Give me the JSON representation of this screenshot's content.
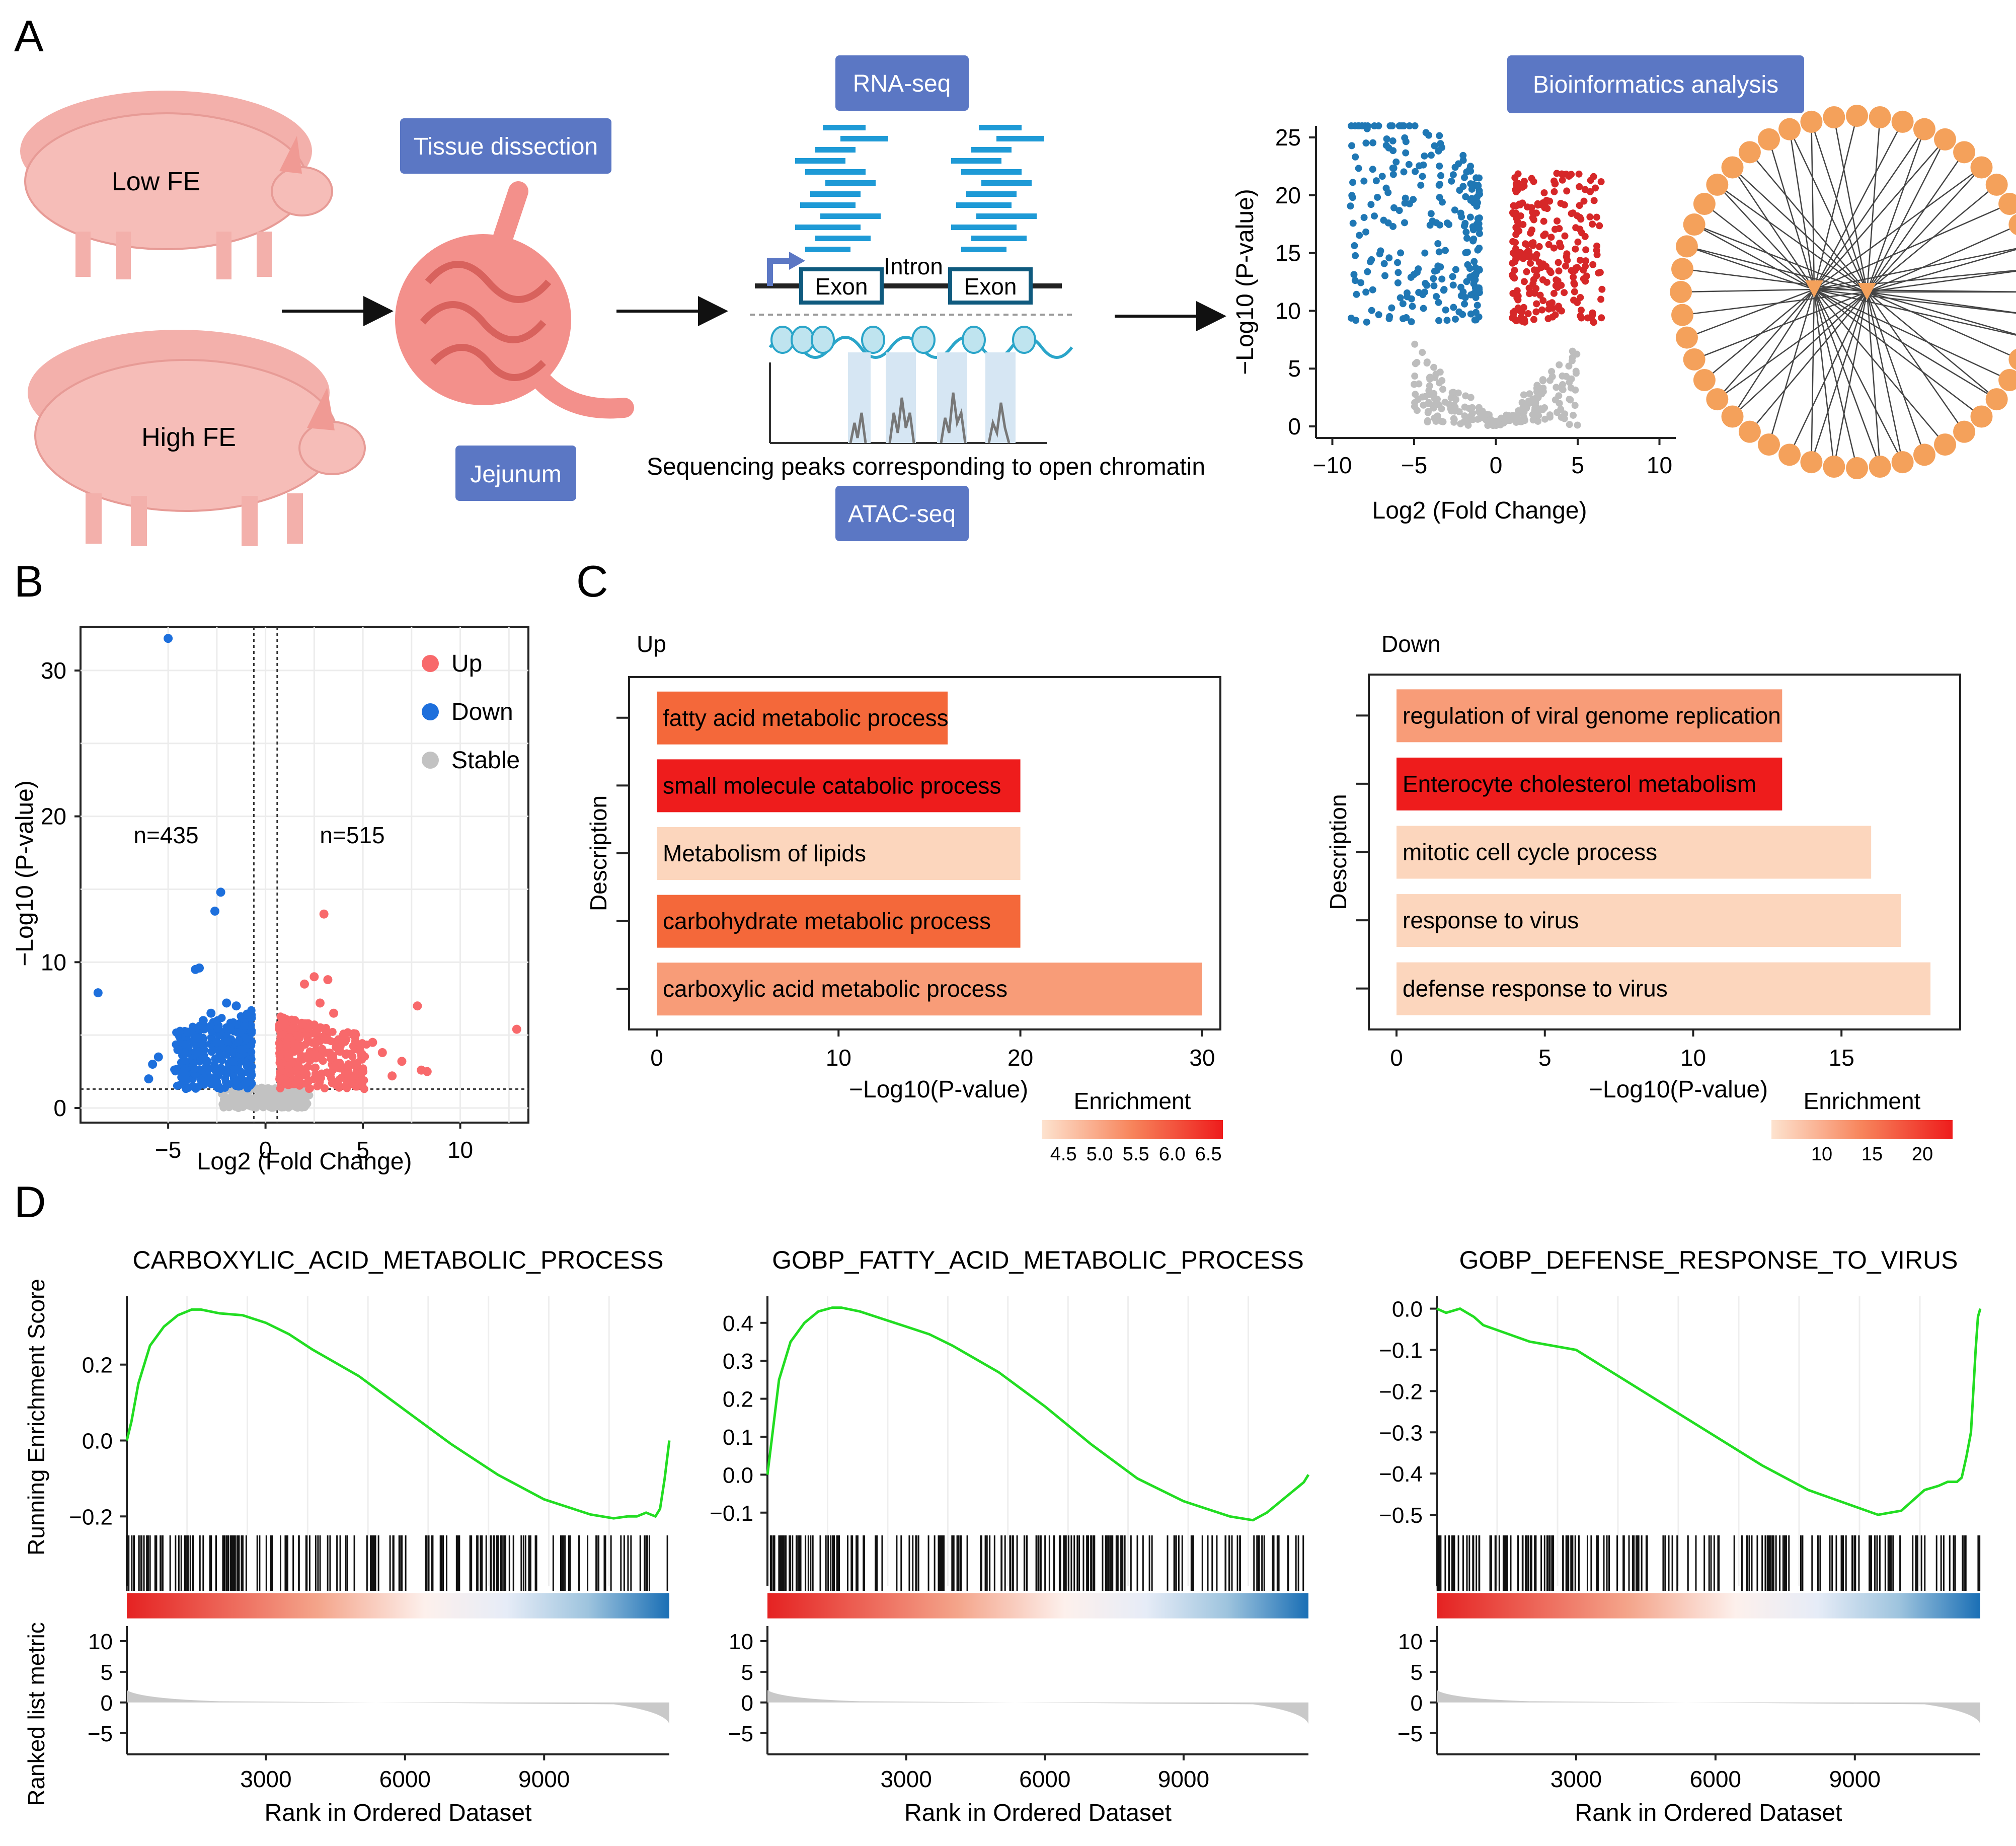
{
  "panel_labels": {
    "a": "A",
    "b": "B",
    "c": "C",
    "d": "D"
  },
  "panel_a": {
    "pig_low_label": "Low FE",
    "pig_high_label": "High FE",
    "tissue_dissection": "Tissue dissection",
    "jejunum": "Jejunum",
    "rna_seq": "RNA-seq",
    "atac_seq": "ATAC-seq",
    "intron": "Intron",
    "exon1": "Exon",
    "exon2": "Exon",
    "peaks_caption": "Sequencing peaks corresponding to open chromatin",
    "bioinformatics": "Bioinformatics analysis",
    "volcano_ylabel": "−Log10 (P-value)",
    "volcano_xlabel": "Log2 (Fold Change)",
    "volcano_xticks": [
      "−10",
      "−5",
      "0",
      "5",
      "10"
    ],
    "volcano_yticks": [
      "0",
      "5",
      "10",
      "15",
      "20",
      "25"
    ],
    "colors": {
      "box": "#5b77c4",
      "pig": "#f6b6b1",
      "gut": "#f08a86",
      "up": "#d62728",
      "down": "#1f77b4",
      "stable": "#bdbdbd",
      "node": "#f4a15b"
    }
  },
  "chart_data": [
    {
      "id": "B",
      "type": "scatter",
      "title": "",
      "xlabel": "Log2 (Fold Change)",
      "ylabel": "−Log10 (P-value)",
      "xlim": [
        -9.5,
        13.5
      ],
      "ylim": [
        -1,
        33
      ],
      "xticks": [
        "−5",
        "0",
        "5",
        "10"
      ],
      "yticks": [
        "0",
        "10",
        "20",
        "30"
      ],
      "legend": [
        "Up",
        "Down",
        "Stable"
      ],
      "legend_position": "top-right",
      "annotations": [
        "n=435",
        "n=515"
      ],
      "series": [
        {
          "name": "Up",
          "color": "#f8696b",
          "points": [
            [
              2.0,
              8.5
            ],
            [
              2.5,
              9.0
            ],
            [
              3.2,
              8.8
            ],
            [
              2.8,
              7.2
            ],
            [
              3.5,
              6.5
            ],
            [
              4.0,
              5.0
            ],
            [
              5.5,
              4.5
            ],
            [
              6.0,
              3.8
            ],
            [
              7.0,
              3.2
            ],
            [
              8.0,
              2.6
            ],
            [
              8.3,
              2.5
            ],
            [
              12.9,
              5.4
            ],
            [
              7.8,
              7.0
            ],
            [
              3.0,
              13.3
            ],
            [
              1.5,
              6.0
            ],
            [
              2.2,
              5.5
            ],
            [
              4.5,
              3.0
            ],
            [
              5.0,
              2.5
            ],
            [
              6.5,
              2.2
            ],
            [
              1.2,
              3.5
            ],
            [
              1.8,
              4.2
            ],
            [
              3.8,
              3.9
            ],
            [
              2.6,
              4.6
            ]
          ]
        },
        {
          "name": "Down",
          "color": "#1d6fdc",
          "points": [
            [
              -5.0,
              32.2
            ],
            [
              -2.3,
              14.8
            ],
            [
              -2.6,
              13.5
            ],
            [
              -3.6,
              9.5
            ],
            [
              -3.4,
              9.6
            ],
            [
              -8.6,
              7.9
            ],
            [
              -2.8,
              6.5
            ],
            [
              -3.2,
              6.0
            ],
            [
              -2.0,
              7.2
            ],
            [
              -1.5,
              7.0
            ],
            [
              -4.0,
              5.2
            ],
            [
              -4.5,
              4.0
            ],
            [
              -5.5,
              3.5
            ],
            [
              -6.0,
              2.0
            ],
            [
              -5.8,
              3.0
            ],
            [
              -3.5,
              4.8
            ],
            [
              -1.8,
              5.5
            ],
            [
              -2.5,
              4.5
            ],
            [
              -1.2,
              4.0
            ],
            [
              -3.0,
              3.2
            ],
            [
              -4.2,
              2.5
            ]
          ]
        }
      ]
    },
    {
      "id": "C-Up",
      "type": "bar",
      "title": "Up",
      "xlabel": "−Log10(P-value)",
      "ylabel": "Description",
      "xlim": [
        0,
        31
      ],
      "xticks": [
        "0",
        "10",
        "20",
        "30"
      ],
      "categories": [
        "fatty acid metabolic process",
        "small molecule catabolic process",
        "Metabolism of lipids",
        "carbohydrate metabolic process",
        "carboxylic acid metabolic process"
      ],
      "values": [
        16,
        20,
        20,
        20,
        30
      ],
      "colors": [
        "#f4683a",
        "#ee1c1c",
        "#fcd6bd",
        "#f4683a",
        "#f89c78"
      ],
      "legend_title": "Enrichment",
      "legend_ticks": [
        "4.5",
        "5.0",
        "5.5",
        "6.0",
        "6.5"
      ]
    },
    {
      "id": "C-Down",
      "type": "bar",
      "title": "Down",
      "xlabel": "−Log10(P-value)",
      "ylabel": "Description",
      "xlim": [
        0,
        19
      ],
      "xticks": [
        "0",
        "5",
        "10",
        "15"
      ],
      "categories": [
        "regulation of viral genome replication",
        "Enterocyte cholesterol metabolism",
        "mitotic cell cycle process",
        "response to virus",
        "defense response to virus"
      ],
      "values": [
        13,
        13,
        16,
        17,
        18
      ],
      "colors": [
        "#f89c78",
        "#ee1c1c",
        "#fcd6bd",
        "#fcd6bd",
        "#fcd6bd"
      ],
      "legend_title": "Enrichment",
      "legend_ticks": [
        "10",
        "15",
        "20"
      ]
    },
    {
      "id": "D1",
      "type": "line",
      "title": "CARBOXYLIC_ACID_METABOLIC_PROCESS",
      "xlabel": "Rank in Ordered Dataset",
      "ylabel": "Running Enrichment Score",
      "xlim": [
        0,
        11700
      ],
      "ylim": [
        -0.25,
        0.38
      ],
      "xticks": [
        "3000",
        "6000",
        "9000"
      ],
      "yticks": [
        "−0.2",
        "0.0",
        "0.2"
      ],
      "metric_label": "Ranked list metric",
      "metric_ticks": [
        "10",
        "5",
        "0",
        "−5"
      ],
      "x": [
        0,
        100,
        250,
        500,
        800,
        1100,
        1400,
        1600,
        2000,
        2500,
        3000,
        3500,
        4000,
        5000,
        6000,
        7000,
        8000,
        9000,
        10000,
        10500,
        10800,
        11000,
        11200,
        11400,
        11500,
        11600,
        11700
      ],
      "y": [
        0.0,
        0.05,
        0.15,
        0.25,
        0.3,
        0.33,
        0.345,
        0.345,
        0.335,
        0.33,
        0.31,
        0.28,
        0.24,
        0.17,
        0.08,
        -0.01,
        -0.09,
        -0.155,
        -0.195,
        -0.205,
        -0.2,
        -0.2,
        -0.19,
        -0.2,
        -0.18,
        -0.1,
        0.0
      ]
    },
    {
      "id": "D2",
      "type": "line",
      "title": "GOBP_FATTY_ACID_METABOLIC_PROCESS",
      "xlabel": "Rank in Ordered Dataset",
      "ylabel": "",
      "xlim": [
        0,
        11700
      ],
      "ylim": [
        -0.16,
        0.47
      ],
      "xticks": [
        "3000",
        "6000",
        "9000"
      ],
      "yticks": [
        "−0.1",
        "0.0",
        "0.1",
        "0.2",
        "0.3",
        "0.4"
      ],
      "metric_ticks": [
        "10",
        "5",
        "0",
        "−5"
      ],
      "x": [
        0,
        100,
        250,
        500,
        800,
        1100,
        1400,
        1600,
        2000,
        2500,
        3000,
        3500,
        4000,
        5000,
        6000,
        7000,
        8000,
        9000,
        10000,
        10500,
        10800,
        11000,
        11200,
        11400,
        11500,
        11600,
        11700
      ],
      "y": [
        0.0,
        0.1,
        0.25,
        0.35,
        0.4,
        0.43,
        0.44,
        0.44,
        0.43,
        0.41,
        0.39,
        0.37,
        0.34,
        0.27,
        0.18,
        0.08,
        -0.01,
        -0.07,
        -0.11,
        -0.12,
        -0.1,
        -0.08,
        -0.06,
        -0.04,
        -0.03,
        -0.02,
        0.0
      ]
    },
    {
      "id": "D3",
      "type": "line",
      "title": "GOBP_DEFENSE_RESPONSE_TO_VIRUS",
      "xlabel": "Rank in Ordered Dataset",
      "ylabel": "",
      "xlim": [
        0,
        11700
      ],
      "ylim": [
        -0.55,
        0.03
      ],
      "xticks": [
        "3000",
        "6000",
        "9000"
      ],
      "yticks": [
        "0.0",
        "−0.1",
        "−0.2",
        "−0.3",
        "−0.4",
        "−0.5"
      ],
      "metric_ticks": [
        "10",
        "5",
        "0",
        "−5"
      ],
      "x": [
        0,
        200,
        500,
        800,
        1000,
        1500,
        2000,
        3000,
        4000,
        5000,
        6000,
        7000,
        8000,
        8500,
        9000,
        9500,
        10000,
        10500,
        10800,
        11000,
        11200,
        11300,
        11400,
        11500,
        11550,
        11600,
        11650,
        11700
      ],
      "y": [
        0.0,
        -0.01,
        0.0,
        -0.02,
        -0.04,
        -0.06,
        -0.08,
        -0.1,
        -0.17,
        -0.24,
        -0.31,
        -0.38,
        -0.44,
        -0.46,
        -0.48,
        -0.5,
        -0.49,
        -0.44,
        -0.43,
        -0.42,
        -0.42,
        -0.41,
        -0.36,
        -0.3,
        -0.2,
        -0.1,
        -0.02,
        0.0
      ]
    }
  ]
}
